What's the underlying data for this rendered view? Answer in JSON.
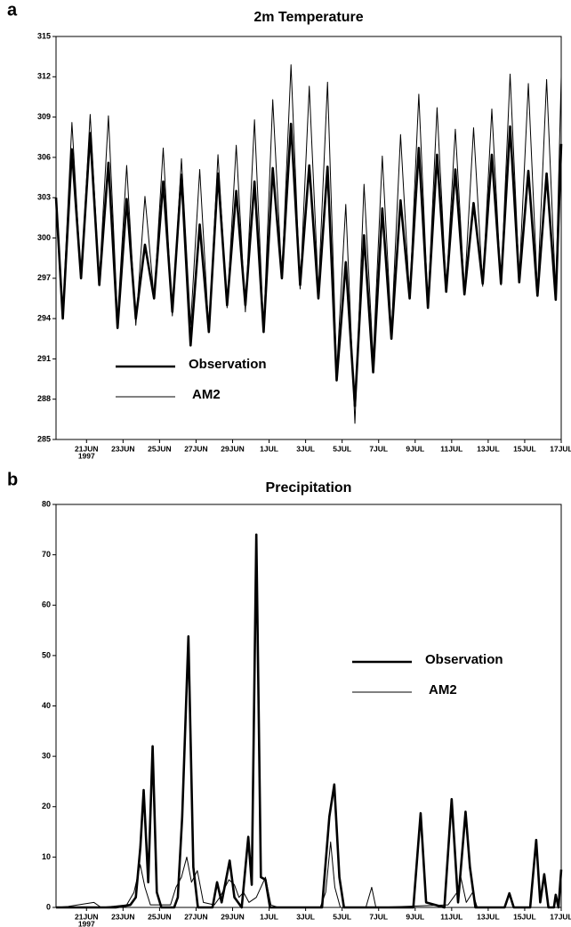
{
  "chart_data": [
    {
      "type": "line",
      "panel_label": "a",
      "title": "2m Temperature",
      "x_year_label": "1997",
      "legend": "lower left",
      "grid": false,
      "xlim": [
        19.33,
        47
      ],
      "ylim": [
        285,
        315
      ],
      "yticks": [
        285,
        288,
        291,
        294,
        297,
        300,
        303,
        306,
        309,
        312,
        315
      ],
      "xticks": [
        {
          "value": 21,
          "label": "21JUN"
        },
        {
          "value": 23,
          "label": "23JUN"
        },
        {
          "value": 25,
          "label": "25JUN"
        },
        {
          "value": 27,
          "label": "27JUN"
        },
        {
          "value": 29,
          "label": "29JUN"
        },
        {
          "value": 31,
          "label": "1JUL"
        },
        {
          "value": 33,
          "label": "3JUL"
        },
        {
          "value": 35,
          "label": "5JUL"
        },
        {
          "value": 37,
          "label": "7JUL"
        },
        {
          "value": 39,
          "label": "9JUL"
        },
        {
          "value": 41,
          "label": "11JUL"
        },
        {
          "value": 43,
          "label": "13JUL"
        },
        {
          "value": 45,
          "label": "15JUL"
        },
        {
          "value": 47,
          "label": "17JUL"
        }
      ],
      "x": [
        19.33,
        19.7,
        20.2,
        20.7,
        21.2,
        21.7,
        22.2,
        22.7,
        23.2,
        23.7,
        24.2,
        24.7,
        25.2,
        25.7,
        26.2,
        26.7,
        27.2,
        27.7,
        28.2,
        28.7,
        29.2,
        29.7,
        30.2,
        30.7,
        31.2,
        31.7,
        32.2,
        32.7,
        33.2,
        33.7,
        34.2,
        34.7,
        35.2,
        35.7,
        36.2,
        36.7,
        37.2,
        37.7,
        38.2,
        38.7,
        39.2,
        39.7,
        40.2,
        40.7,
        41.2,
        41.7,
        42.2,
        42.7,
        43.2,
        43.7,
        44.2,
        44.7,
        45.2,
        45.7,
        46.2,
        46.7,
        47.0
      ],
      "series": [
        {
          "name": "Observation",
          "color": "#000000",
          "linewidth": 2.6,
          "values": [
            303,
            294,
            306.6,
            297,
            307.8,
            296.5,
            305.6,
            293.3,
            302.9,
            294,
            299.5,
            295.5,
            304.2,
            294.5,
            304.7,
            292,
            301.0,
            293,
            304.8,
            295,
            303.5,
            295,
            304.2,
            293,
            305.2,
            297,
            308.5,
            296.5,
            305.4,
            295.5,
            305.3,
            289.4,
            298.2,
            287.5,
            300.2,
            290,
            302.2,
            292.5,
            302.8,
            295.5,
            306.7,
            294.8,
            306.2,
            296,
            305.1,
            295.8,
            302.6,
            296.6,
            306.2,
            296.6,
            308.3,
            296.7,
            305.0,
            295.7,
            304.8,
            295.4,
            307
          ]
        },
        {
          "name": "AM2",
          "color": "#000000",
          "linewidth": 1,
          "values": [
            302.5,
            294.5,
            308.6,
            297,
            309.2,
            296.8,
            309.1,
            294,
            305.4,
            293.5,
            303.1,
            295.5,
            306.7,
            294.2,
            305.9,
            293.5,
            305.1,
            293,
            306.2,
            294.8,
            306.9,
            294.5,
            308.8,
            293.2,
            310.3,
            297,
            312.9,
            296.2,
            311.3,
            296,
            311.6,
            290,
            302.5,
            286.2,
            304.0,
            291,
            306.1,
            293,
            307.7,
            295.5,
            310.7,
            295,
            309.7,
            296.2,
            308.1,
            296,
            308.2,
            296.4,
            309.6,
            296.5,
            312.2,
            297,
            311.5,
            296,
            311.8,
            295.8,
            312
          ]
        }
      ]
    },
    {
      "type": "line",
      "panel_label": "b",
      "title": "Precipitation",
      "x_year_label": "1997",
      "legend": "upper right",
      "grid": false,
      "xlim": [
        19.33,
        47
      ],
      "ylim": [
        0,
        80
      ],
      "yticks": [
        0,
        10,
        20,
        30,
        40,
        50,
        60,
        70,
        80
      ],
      "xticks": [
        {
          "value": 21,
          "label": "21JUN"
        },
        {
          "value": 23,
          "label": "23JUN"
        },
        {
          "value": 25,
          "label": "25JUN"
        },
        {
          "value": 27,
          "label": "27JUN"
        },
        {
          "value": 29,
          "label": "29JUN"
        },
        {
          "value": 31,
          "label": "1JUL"
        },
        {
          "value": 33,
          "label": "3JUL"
        },
        {
          "value": 35,
          "label": "5JUL"
        },
        {
          "value": 37,
          "label": "7JUL"
        },
        {
          "value": 39,
          "label": "9JUL"
        },
        {
          "value": 41,
          "label": "11JUL"
        },
        {
          "value": 43,
          "label": "13JUL"
        },
        {
          "value": 45,
          "label": "15JUL"
        },
        {
          "value": 47,
          "label": "17JUL"
        }
      ],
      "series": [
        {
          "name": "Observation",
          "color": "#000000",
          "linewidth": 2.6,
          "x": [
            19.33,
            22.6,
            23.4,
            23.7,
            23.95,
            24.13,
            24.38,
            24.62,
            24.85,
            25.1,
            25.8,
            26.0,
            26.24,
            26.58,
            26.85,
            27.1,
            27.9,
            28.15,
            28.4,
            28.84,
            29.1,
            29.5,
            29.86,
            30.05,
            30.3,
            30.55,
            30.8,
            31.05,
            33.9,
            34.3,
            34.57,
            34.85,
            35.1,
            38.9,
            39.3,
            39.6,
            40.6,
            41.0,
            41.35,
            41.76,
            42.0,
            42.3,
            43.9,
            44.16,
            44.4,
            45.3,
            45.63,
            45.85,
            46.07,
            46.3,
            46.6,
            46.7,
            46.85,
            47.0
          ],
          "values": [
            0,
            0,
            0.5,
            2,
            12,
            23.3,
            5,
            32,
            3,
            0,
            0,
            2,
            18,
            53.8,
            8,
            0,
            0,
            5,
            1,
            9.3,
            2,
            0,
            14,
            4.5,
            74,
            6,
            5.5,
            0,
            0,
            18,
            24.4,
            6,
            0,
            0,
            18.7,
            1,
            0,
            21.5,
            1,
            19,
            8,
            0,
            0,
            2.8,
            0,
            0,
            13.4,
            1,
            6.6,
            0,
            0,
            2.5,
            0,
            7.5
          ]
        },
        {
          "name": "AM2",
          "color": "#000000",
          "linewidth": 1,
          "x": [
            19.33,
            20.0,
            21.4,
            21.8,
            23.2,
            23.6,
            23.94,
            24.2,
            24.5,
            25.6,
            25.9,
            26.2,
            26.49,
            26.75,
            27.07,
            27.4,
            28.0,
            28.3,
            28.8,
            29.1,
            29.35,
            29.6,
            29.9,
            30.3,
            30.8,
            31.1,
            31.5,
            33.8,
            34.1,
            34.37,
            34.6,
            34.9,
            36.3,
            36.62,
            36.85,
            40.8,
            41.3,
            41.5,
            41.8,
            42.15,
            42.4,
            47.0
          ],
          "values": [
            0,
            0.2,
            1,
            0,
            0.5,
            3,
            8.5,
            4,
            0.5,
            0.5,
            4,
            6,
            10,
            5,
            7.3,
            1,
            0.5,
            2,
            5.5,
            4.5,
            2,
            3,
            1,
            2,
            6,
            0.5,
            0,
            0,
            3,
            13,
            4,
            0,
            0,
            4,
            0,
            0.5,
            3,
            6,
            1,
            3,
            0,
            0
          ]
        }
      ]
    }
  ]
}
